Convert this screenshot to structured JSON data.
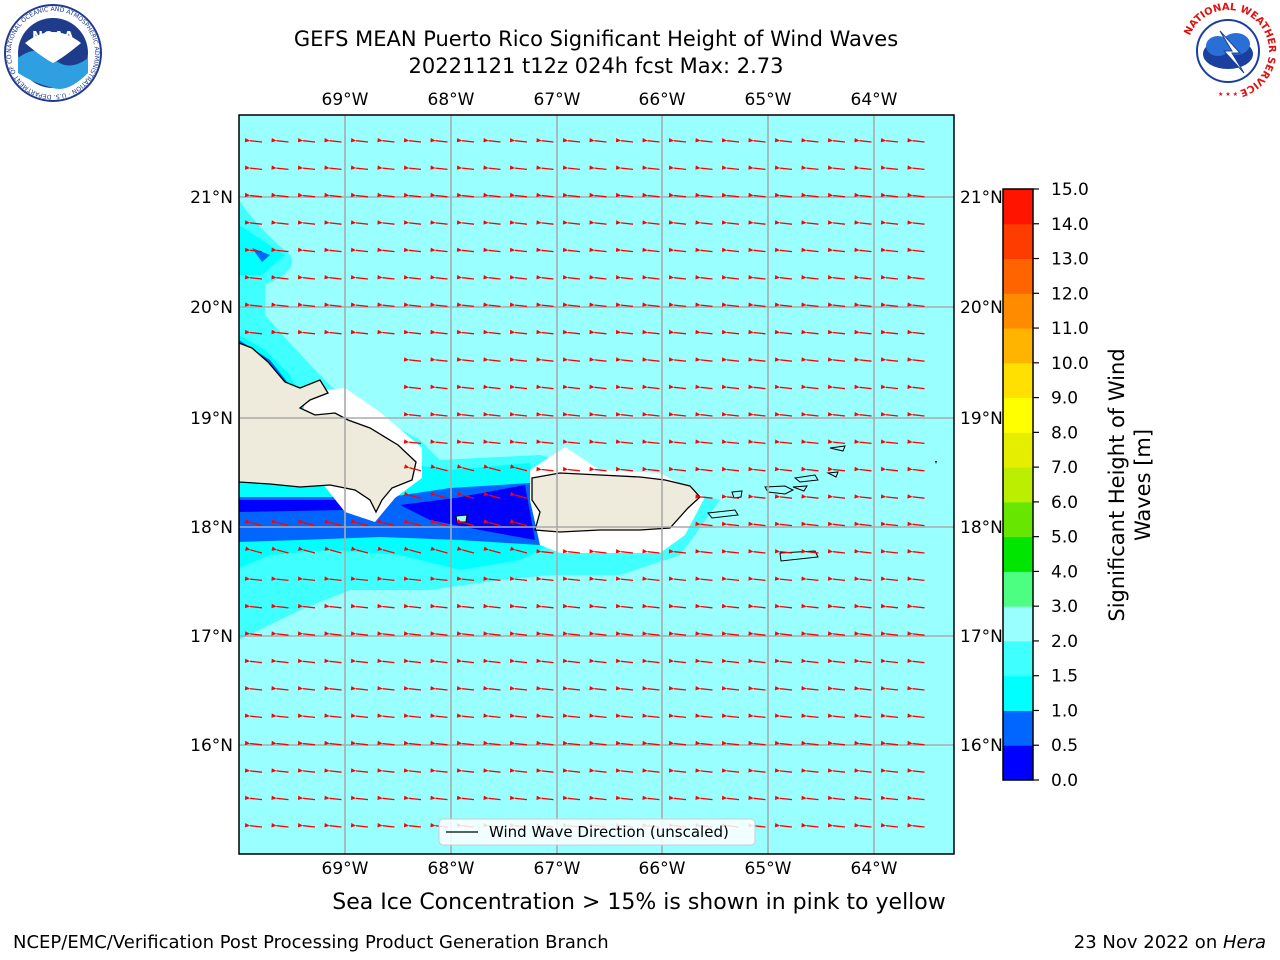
{
  "header": {
    "title_line1": "GEFS MEAN Puerto Rico Significant Height of Wind Waves",
    "title_line2": "20221121 t12z 024h fcst   Max: 2.73"
  },
  "logos": {
    "left": {
      "name": "noaa-logo",
      "text": "NOAA",
      "ring_text": "NATIONAL OCEANIC AND ATMOSPHERIC ADMINISTRATION · U.S. DEPARTMENT OF COMMERCE"
    },
    "right": {
      "name": "nws-logo",
      "ring_text": "NATIONAL WEATHER SERVICE"
    }
  },
  "map": {
    "lon_ticks": [
      "69°W",
      "68°W",
      "67°W",
      "66°W",
      "65°W",
      "64°W"
    ],
    "lat_ticks": [
      "21°N",
      "20°N",
      "19°N",
      "18°N",
      "17°N",
      "16°N"
    ],
    "legend_label": "Wind Wave Direction (unscaled)",
    "arrow_color": "#ff0000",
    "ocean_color": "#99ffff",
    "land_color": "#efebdc"
  },
  "colorbar": {
    "label_line1": "Significant Height of Wind",
    "label_line2": "Waves [m]",
    "ticks": [
      "0.0",
      "0.5",
      "1.0",
      "1.5",
      "2.0",
      "3.0",
      "4.0",
      "5.0",
      "6.0",
      "7.0",
      "8.0",
      "9.0",
      "10.0",
      "11.0",
      "12.0",
      "13.0",
      "14.0",
      "15.0"
    ],
    "colors": [
      "#0000ff",
      "#0066ff",
      "#00ffff",
      "#40ffff",
      "#99ffff",
      "#4dff80",
      "#00e600",
      "#66e600",
      "#bbee00",
      "#e6ee00",
      "#ffff00",
      "#ffe000",
      "#ffb400",
      "#ff8c00",
      "#ff6400",
      "#ff3c00",
      "#ff1400"
    ]
  },
  "caption": "Sea Ice Concentration > 15% is shown in pink to yellow",
  "footer": {
    "left": "NCEP/EMC/Verification Post Processing Product Generation Branch",
    "right_date": "23 Nov 2022 on ",
    "right_host": "Hera"
  }
}
